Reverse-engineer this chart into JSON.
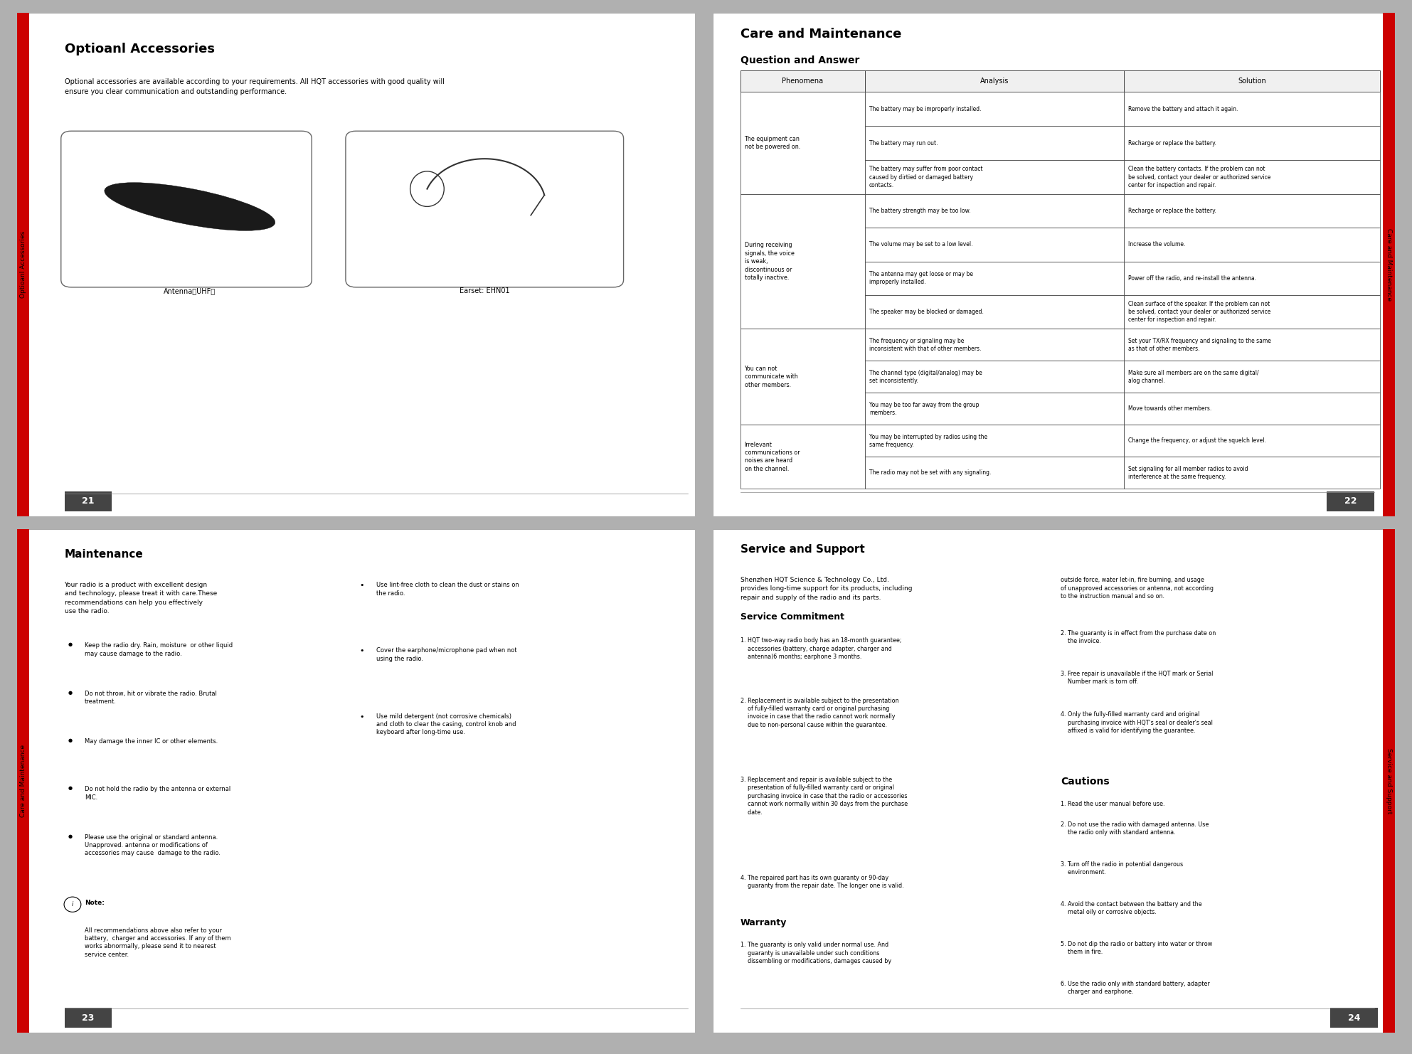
{
  "page1_title": "Optioanl Accessories",
  "page1_tab": "Optioanl Accessories",
  "page1_num": "21",
  "page1_body": "Optional accessories are available according to your requirements. All HQT accessories with good quality will\nensure you clear communication and outstanding performance.",
  "page1_antenna_label": "Antenna（UHF）",
  "page1_earset_label": "Earset: EHN01",
  "page2_title": "Care and Maintenance",
  "page2_subtitle": "Question and Answer",
  "page2_tab": "Care and Maintenance",
  "page2_num": "22",
  "page2_col_headers": [
    "Phenomena",
    "Analysis",
    "Solution"
  ],
  "page2_rows": [
    {
      "phenomenon": "The equipment can\nnot be powered on.",
      "analyses": [
        "The battery may be improperly installed.",
        "The battery may run out.",
        "The battery may suffer from poor contact\ncaused by dirtied or damaged battery\ncontacts."
      ],
      "solutions": [
        "Remove the battery and attach it again.",
        "Recharge or replace the battery.",
        "Clean the battery contacts. If the problem can not\nbe solved, contact your dealer or authorized service\ncenter for inspection and repair."
      ]
    },
    {
      "phenomenon": "During receiving\nsignals, the voice\nis weak,\ndiscontinuous or\ntotally inactive.",
      "analyses": [
        "The battery strength may be too low.",
        "The volume may be set to a low level.",
        "The antenna may get loose or may be\nimproperly installed.",
        "The speaker may be blocked or damaged."
      ],
      "solutions": [
        "Recharge or replace the battery.",
        "Increase the volume.",
        "Power off the radio, and re-install the antenna.",
        "Clean surface of the speaker. If the problem can not\nbe solved, contact your dealer or authorized service\ncenter for inspection and repair."
      ]
    },
    {
      "phenomenon": "You can not\ncommunicate with\nother members.",
      "analyses": [
        "The frequency or signaling may be\ninconsistent with that of other members.",
        "The channel type (digital/analog) may be\nset inconsistently.",
        "You may be too far away from the group\nmembers."
      ],
      "solutions": [
        "Set your TX/RX frequency and signaling to the same\nas that of other members.",
        "Make sure all members are on the same digital/\nalog channel.",
        "Move towards other members."
      ]
    },
    {
      "phenomenon": "Irrelevant\ncommunications or\nnoises are heard\non the channel.",
      "analyses": [
        "You may be interrupted by radios using the\nsame frequency.",
        "The radio may not be set with any signaling."
      ],
      "solutions": [
        "Change the frequency, or adjust the squelch level.",
        "Set signaling for all member radios to avoid\ninterference at the same frequency."
      ]
    }
  ],
  "page3_title": "Maintenance",
  "page3_tab": "Care and Maintenance",
  "page3_num": "23",
  "page3_intro": "Your radio is a product with excellent design\nand technology, please treat it with care.These\nrecommendations can help you ​effectively\nuse the radio.",
  "page3_bullets_left": [
    "Keep the radio dry. Rain, moisture  or other liquid\nmay cause damage to the radio.",
    "Do not throw, hit or vibrate the radio. Brutal\ntreatment.",
    "May damage the inner IC or other elements.",
    "Do not hold the radio by the antenna or external\nMIC.",
    "Please use the original or standard antenna.\nUnapproved. antenna or modifications of\naccessories may cause  damage to the radio."
  ],
  "page3_note_title": "Note:",
  "page3_note_body": "All recommendations above also refer to your\nbattery,  charger and accessories. If any of them\nworks abnormally, please send it to nearest\nservice center.",
  "page3_bullets_right": [
    "Use lint-free cloth to clean the dust or stains on\nthe radio.",
    "Cover the earphone/microphone pad when not\nusing the radio.",
    "Use mild detergent (not corrosive chemicals)\nand cloth to clear the casing, control knob and\nkeyboard after long-time use."
  ],
  "page4_title": "Service and Support",
  "page4_tab": "Service and Support",
  "page4_num": "24",
  "page4_intro": "Shenzhen HQT Science & Technology Co., Ltd.\nprovides long-time support for its products, including\nrepair and supply of the radio and its parts.",
  "page4_service_title": "Service Commitment",
  "page4_service_items": [
    "1. HQT two-way radio body has an 18-month guarantee;\n    accessories (battery, charge adapter, charger and\n    antenna)6 months; earphone 3 months.",
    "2. Replacement is available subject to the presentation\n    of fully-filled warranty card or original purchasing\n    invoice in case that the radio cannot work normally\n    due to non-personal cause within the guarantee.",
    "3. Replacement and repair is available subject to the\n    presentation of fully-filled warranty card or original\n    purchasing invoice in case that the radio or accessories\n    cannot work normally within 30 days from the purchase\n    date.",
    "4. The repaired part has its own guaranty or 90-day\n    guaranty from the repair date. The longer one is valid."
  ],
  "page4_warranty_title": "Warranty",
  "page4_warranty_items": [
    "1. The guaranty is only valid under normal use. And\n    guaranty is unavailable under such conditions\n    dissembling or modifications, damages caused by"
  ],
  "page4_col2_warranty_cont": "outside force, water let-in, fire burning, and usage\nof unapproved accessories or antenna, not according\nto the instruction manual and so on.",
  "page4_col2_items": [
    "2. The guaranty is in effect from the purchase date on\n    the invoice.",
    "3. Free repair is unavailable if the HQT mark or Serial\n    Number mark is torn off.",
    "4. Only the fully-filled warranty card and original\n    purchasing invoice with HQT's seal or dealer's seal\n    affixed is valid for identifying the guarantee."
  ],
  "page4_cautions_title": "Cautions",
  "page4_cautions_items": [
    "1. Read the user manual before use.",
    "2. Do not use the radio with damaged antenna. Use\n    the radio only with standard antenna.",
    "3. Turn off the radio in potential dangerous\n    environment.",
    "4. Avoid the contact between the battery and the\n    metal oily or corrosive objects.",
    "5. Do not dip the radio or battery into water or throw\n    them in fire.",
    "6. Use the radio only with standard battery, adapter\n    charger and earphone."
  ]
}
